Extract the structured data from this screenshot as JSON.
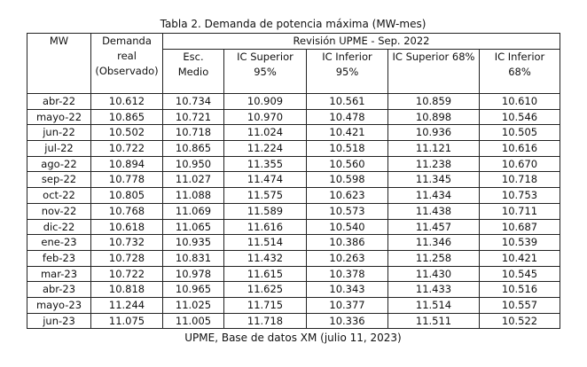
{
  "caption": "Tabla 2. Demanda de potencia máxima (MW-mes)",
  "table": {
    "header": {
      "mw": "MW",
      "demanda": "Demanda real (Observado)",
      "group": "Revisión UPME - Sep. 2022",
      "columns": [
        "Esc. Medio",
        "IC Superior 95%",
        "IC Inferior 95%",
        "IC Superior 68%",
        "IC Inferior 68%"
      ]
    },
    "rows": [
      [
        "abr-22",
        "10.612",
        "10.734",
        "10.909",
        "10.561",
        "10.859",
        "10.610"
      ],
      [
        "mayo-22",
        "10.865",
        "10.721",
        "10.970",
        "10.478",
        "10.898",
        "10.546"
      ],
      [
        "jun-22",
        "10.502",
        "10.718",
        "11.024",
        "10.421",
        "10.936",
        "10.505"
      ],
      [
        "jul-22",
        "10.722",
        "10.865",
        "11.224",
        "10.518",
        "11.121",
        "10.616"
      ],
      [
        "ago-22",
        "10.894",
        "10.950",
        "11.355",
        "10.560",
        "11.238",
        "10.670"
      ],
      [
        "sep-22",
        "10.778",
        "11.027",
        "11.474",
        "10.598",
        "11.345",
        "10.718"
      ],
      [
        "oct-22",
        "10.805",
        "11.088",
        "11.575",
        "10.623",
        "11.434",
        "10.753"
      ],
      [
        "nov-22",
        "10.768",
        "11.069",
        "11.589",
        "10.573",
        "11.438",
        "10.711"
      ],
      [
        "dic-22",
        "10.618",
        "11.065",
        "11.616",
        "10.540",
        "11.457",
        "10.687"
      ],
      [
        "ene-23",
        "10.732",
        "10.935",
        "11.514",
        "10.386",
        "11.346",
        "10.539"
      ],
      [
        "feb-23",
        "10.728",
        "10.831",
        "11.432",
        "10.263",
        "11.258",
        "10.421"
      ],
      [
        "mar-23",
        "10.722",
        "10.978",
        "11.615",
        "10.378",
        "11.430",
        "10.545"
      ],
      [
        "abr-23",
        "10.818",
        "10.965",
        "11.625",
        "10.343",
        "11.433",
        "10.516"
      ],
      [
        "mayo-23",
        "11.244",
        "11.025",
        "11.715",
        "10.377",
        "11.514",
        "10.557"
      ],
      [
        "jun-23",
        "11.075",
        "11.005",
        "11.718",
        "10.336",
        "11.511",
        "10.522"
      ]
    ]
  },
  "source": "UPME, Base de datos XM (julio 11, 2023)"
}
